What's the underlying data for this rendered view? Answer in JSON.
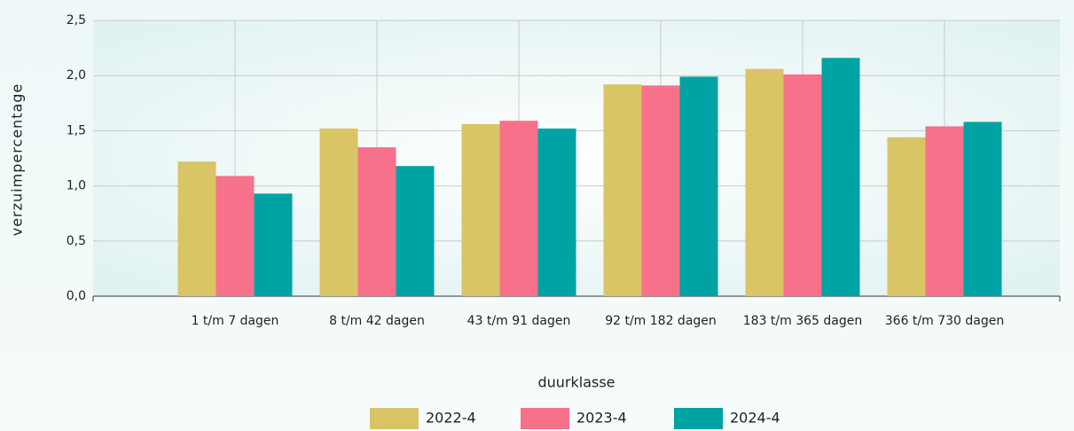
{
  "chart_data": {
    "type": "bar",
    "xlabel": "duurklasse",
    "ylabel": "verzuimpercentage",
    "categories": [
      "1 t/m 7 dagen",
      "8 t/m 42 dagen",
      "43 t/m 91 dagen",
      "92 t/m 182 dagen",
      "183 t/m 365 dagen",
      "366 t/m 730 dagen"
    ],
    "series": [
      {
        "name": "2022-4",
        "color": "#d9c466",
        "values": [
          1.22,
          1.52,
          1.56,
          1.92,
          2.06,
          1.44
        ]
      },
      {
        "name": "2023-4",
        "color": "#f7718a",
        "values": [
          1.09,
          1.35,
          1.59,
          1.91,
          2.01,
          1.54
        ]
      },
      {
        "name": "2024-4",
        "color": "#00a3a3",
        "values": [
          0.93,
          1.18,
          1.52,
          1.99,
          2.16,
          1.58
        ]
      }
    ],
    "ylim": [
      0,
      2.5
    ],
    "yticks": [
      {
        "value": 0,
        "label": "0,0"
      },
      {
        "value": 0.5,
        "label": "0,5"
      },
      {
        "value": 1,
        "label": "1,0"
      },
      {
        "value": 1.5,
        "label": "1,5"
      },
      {
        "value": 2,
        "label": "2,0"
      },
      {
        "value": 2.5,
        "label": "2,5"
      }
    ],
    "grid": true,
    "legend": "bottom"
  }
}
